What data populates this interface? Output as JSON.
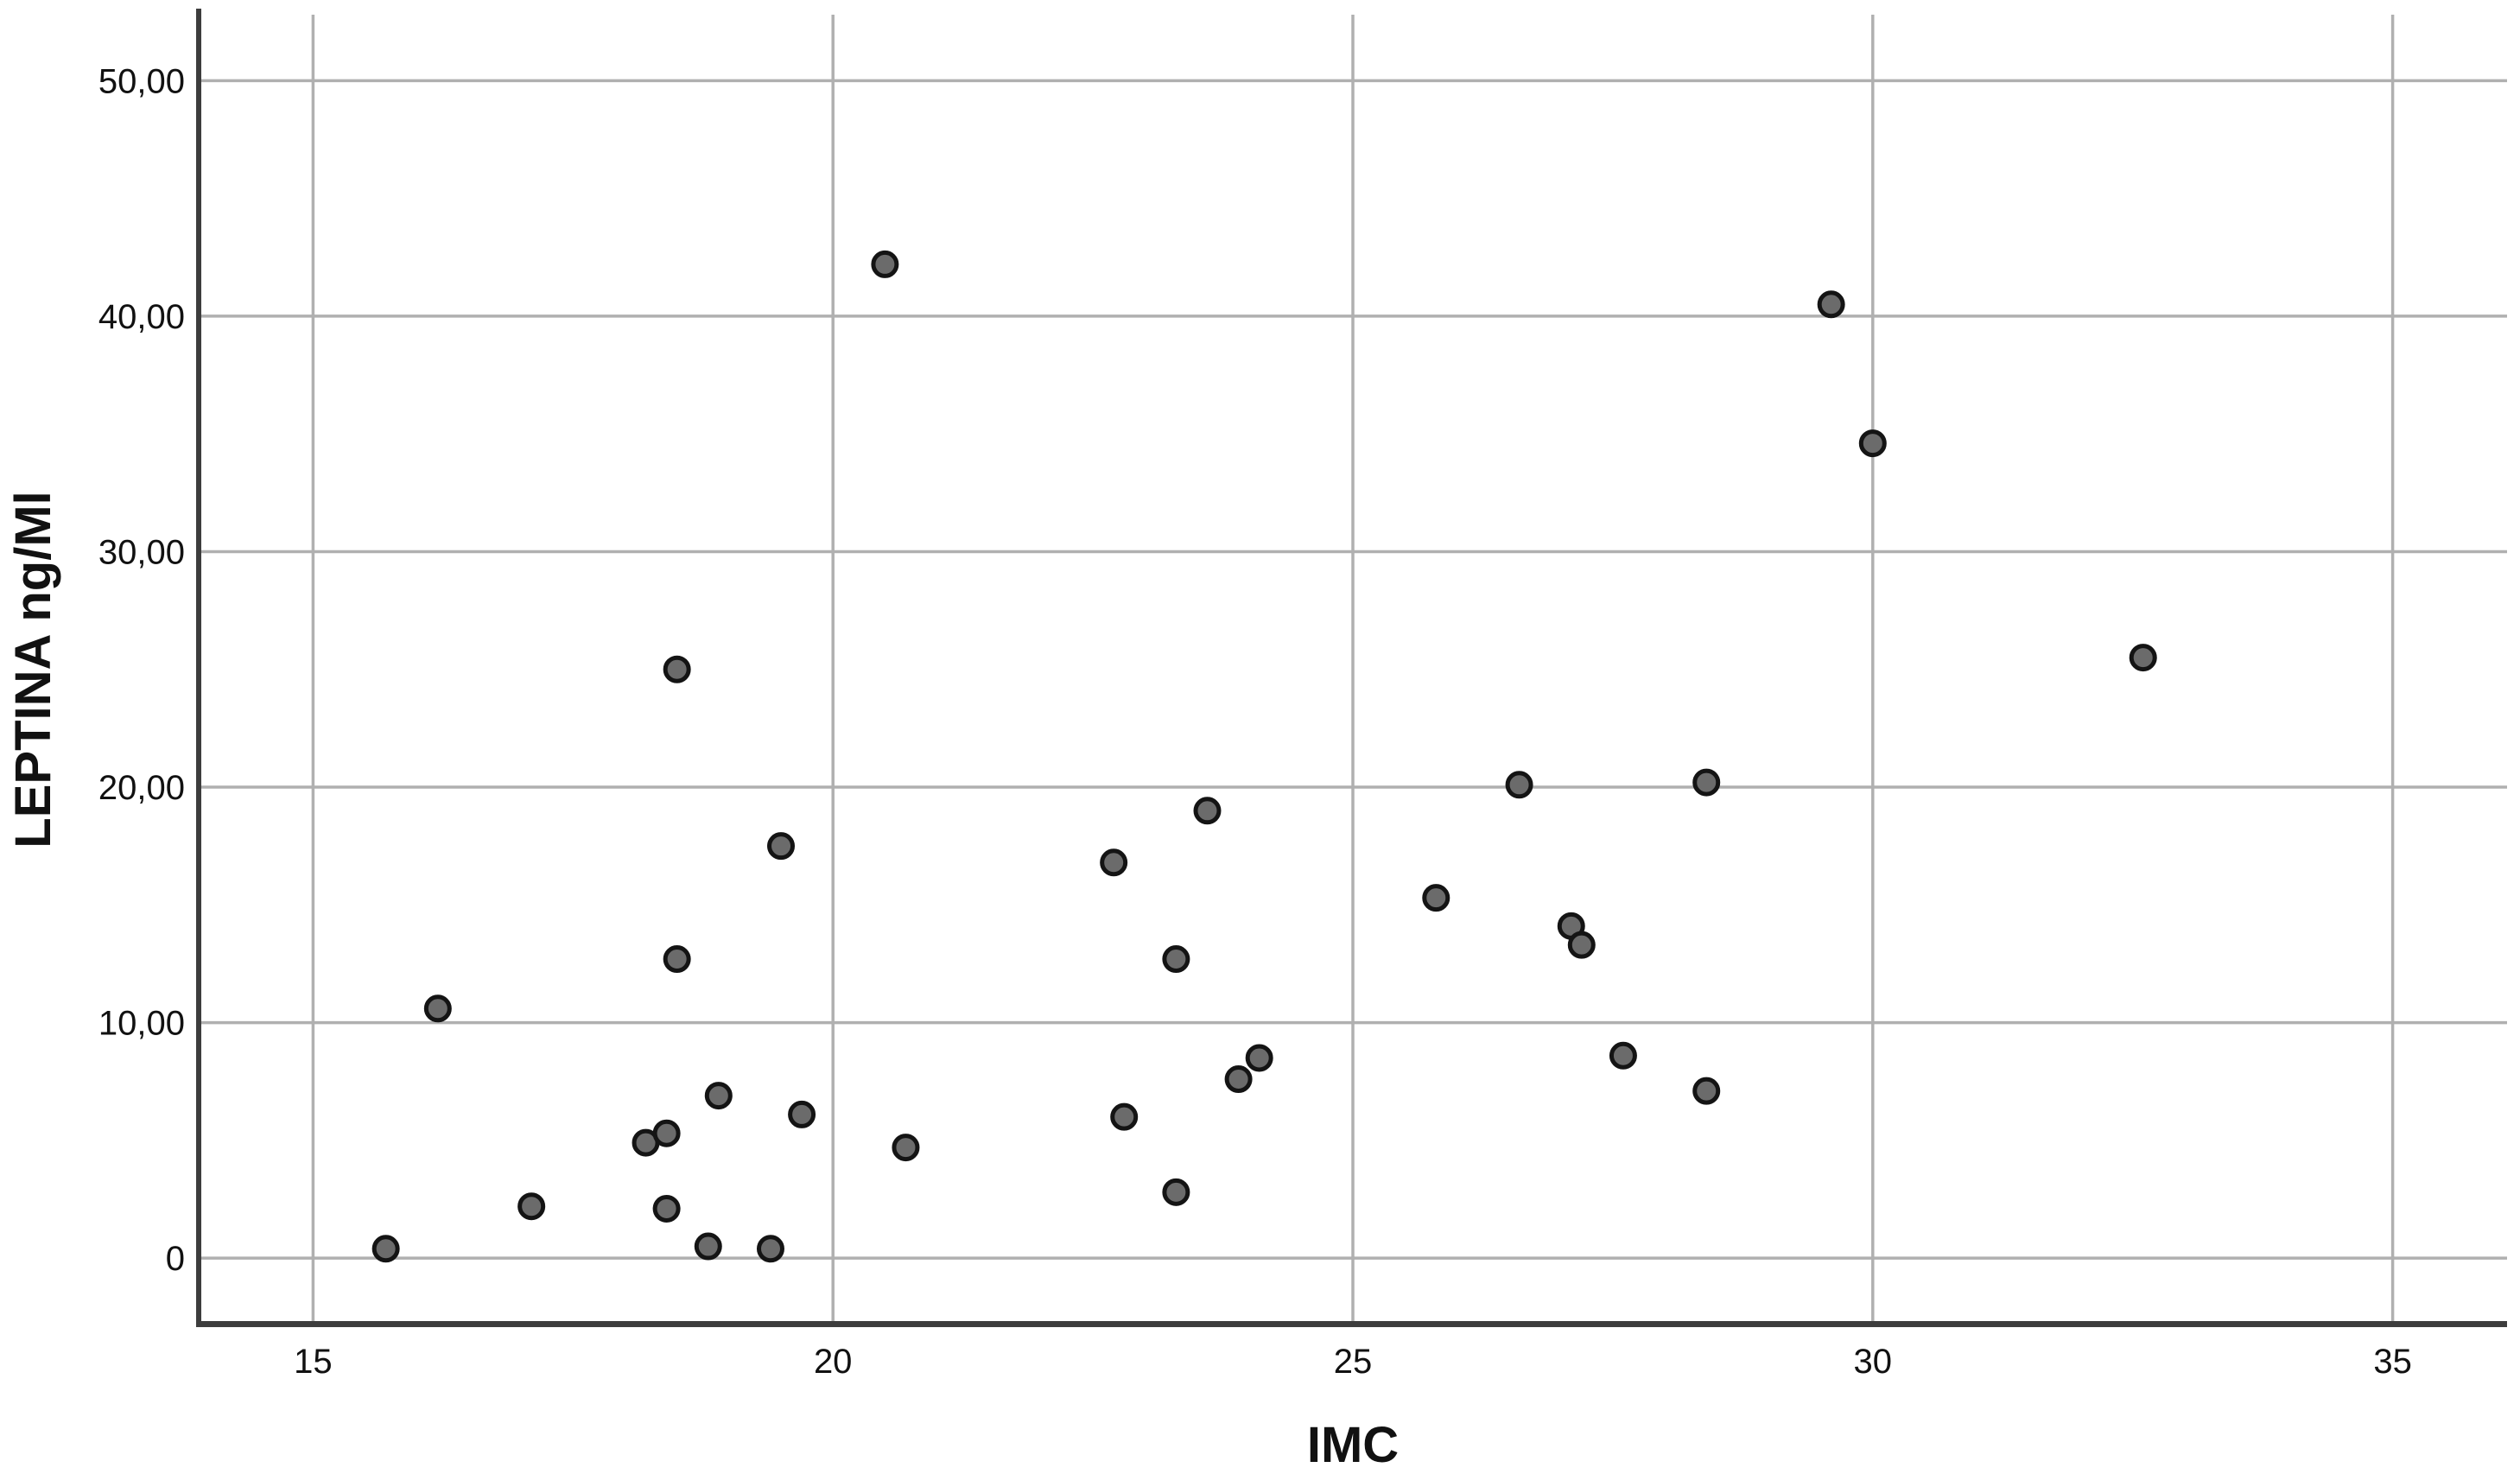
{
  "chart_data": {
    "type": "scatter",
    "title": "",
    "xlabel": "IMC",
    "ylabel": "LEPTINA ng/Ml",
    "x_ticks": [
      15,
      20,
      25,
      30,
      35
    ],
    "x_tick_labels": [
      "15",
      "20",
      "25",
      "30",
      "35"
    ],
    "y_ticks": [
      0,
      10,
      20,
      30,
      40,
      50
    ],
    "y_tick_labels": [
      "0",
      "10,00",
      "20,00",
      "30,00",
      "40,00",
      "50,00"
    ],
    "xlim": [
      13.9,
      36.1
    ],
    "ylim": [
      -2.8,
      52.8
    ],
    "grid": true,
    "legend": "none",
    "points": [
      [
        15.7,
        0.4
      ],
      [
        16.2,
        10.6
      ],
      [
        17.1,
        2.2
      ],
      [
        18.2,
        4.9
      ],
      [
        18.4,
        5.3
      ],
      [
        18.4,
        2.1
      ],
      [
        18.5,
        12.7
      ],
      [
        18.5,
        25.0
      ],
      [
        18.8,
        0.5
      ],
      [
        18.9,
        6.9
      ],
      [
        19.4,
        0.4
      ],
      [
        19.5,
        17.5
      ],
      [
        19.7,
        6.1
      ],
      [
        20.5,
        42.2
      ],
      [
        20.7,
        4.7
      ],
      [
        22.7,
        16.8
      ],
      [
        22.8,
        6.0
      ],
      [
        23.3,
        12.7
      ],
      [
        23.3,
        2.8
      ],
      [
        23.6,
        19.0
      ],
      [
        23.9,
        7.6
      ],
      [
        24.1,
        8.5
      ],
      [
        25.8,
        15.3
      ],
      [
        26.6,
        20.1
      ],
      [
        27.1,
        14.1
      ],
      [
        27.2,
        13.3
      ],
      [
        27.6,
        8.6
      ],
      [
        28.4,
        20.2
      ],
      [
        28.4,
        7.1
      ],
      [
        29.6,
        40.5
      ],
      [
        30.0,
        34.6
      ],
      [
        32.6,
        25.5
      ]
    ]
  },
  "style": {
    "background": "#ffffff",
    "grid_color": "#b0b0b0",
    "axis_color": "#3d3d3d",
    "point_fill": "#6b6b6b",
    "point_stroke": "#141414",
    "text_color": "#111111"
  }
}
